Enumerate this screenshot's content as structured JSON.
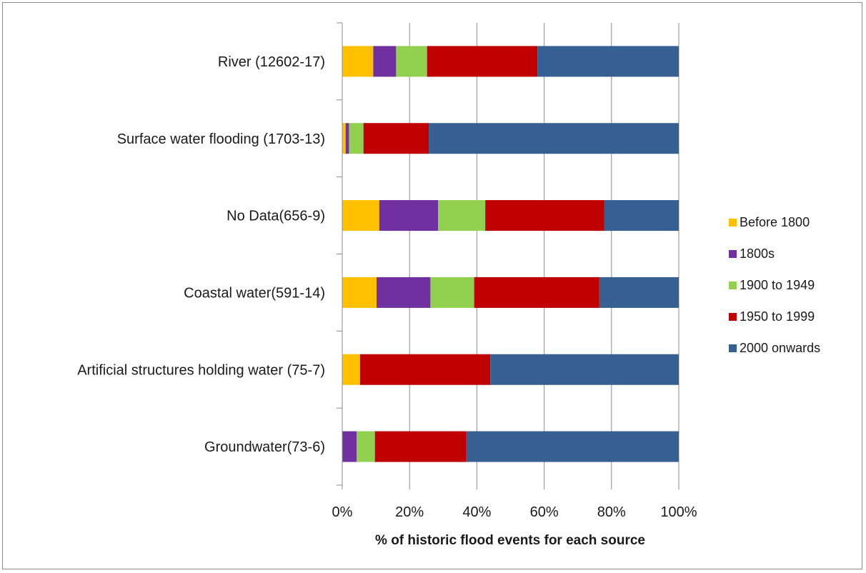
{
  "chart_data": {
    "type": "bar",
    "orientation": "horizontal",
    "stacked": "percent",
    "title": "",
    "xlabel": "% of historic flood events for each source",
    "ylabel": "",
    "xlim": [
      0,
      100
    ],
    "x_ticks": [
      "0%",
      "20%",
      "40%",
      "60%",
      "80%",
      "100%"
    ],
    "grid": "vertical",
    "legend_position": "right",
    "categories": [
      "River (12602-17)",
      "Surface water flooding (1703-13)",
      "No Data(656-9)",
      "Coastal water(591-14)",
      "Artificial structures holding water (75-7)",
      "Groundwater(73-6)"
    ],
    "series": [
      {
        "name": "Before 1800",
        "color": "#FFC000",
        "values": [
          9.2,
          1.0,
          11.0,
          10.2,
          5.3,
          0.0
        ]
      },
      {
        "name": "1800s",
        "color": "#7030A0",
        "values": [
          6.8,
          1.0,
          17.5,
          16.0,
          0.0,
          4.3
        ]
      },
      {
        "name": "1900 to 1949",
        "color": "#92D050",
        "values": [
          9.2,
          4.3,
          14.0,
          13.0,
          0.0,
          5.4
        ]
      },
      {
        "name": "1950 to 1999",
        "color": "#C00000",
        "values": [
          32.8,
          19.4,
          35.4,
          37.2,
          38.7,
          27.2
        ]
      },
      {
        "name": "2000 onwards",
        "color": "#376092",
        "values": [
          42.0,
          74.3,
          22.1,
          23.6,
          56.0,
          63.1
        ]
      }
    ]
  }
}
